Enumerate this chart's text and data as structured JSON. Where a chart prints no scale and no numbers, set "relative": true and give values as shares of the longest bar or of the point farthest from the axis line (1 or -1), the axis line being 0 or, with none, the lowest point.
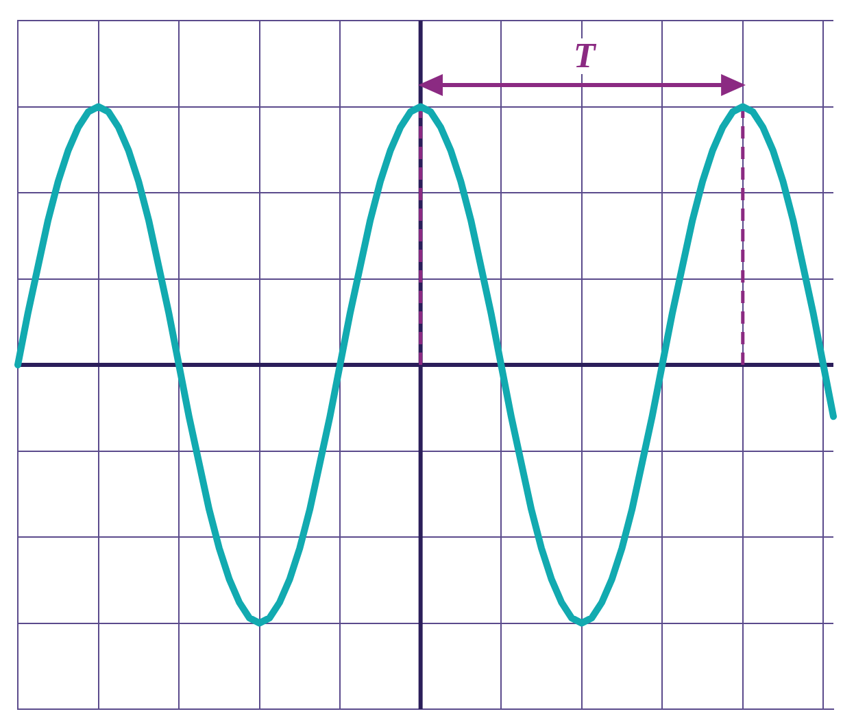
{
  "chart_data": {
    "type": "line",
    "relative": true,
    "grid": true,
    "tick_labels": false,
    "legend": false,
    "marker": "none",
    "line_style": "solid",
    "categories": [
      null,
      null,
      null,
      null,
      null,
      null,
      null,
      null,
      null,
      null,
      null,
      null,
      null,
      null,
      null,
      null,
      null,
      null,
      null,
      null,
      null,
      null,
      null,
      null,
      null,
      null,
      null,
      null,
      null,
      null,
      null,
      null,
      null,
      null,
      null,
      null,
      null,
      null,
      null,
      null,
      null,
      null,
      null,
      null,
      null,
      null,
      null,
      null,
      null,
      null,
      null,
      null,
      null,
      null,
      null,
      null,
      null,
      null,
      null,
      null,
      null,
      null,
      null,
      null,
      null,
      null,
      null,
      null,
      null,
      null,
      null,
      null,
      null,
      null,
      null,
      null,
      null,
      null,
      null,
      null,
      null,
      null
    ],
    "series": [
      {
        "color": "#12aab0",
        "values": [
          0,
          0.2,
          0.38,
          0.56,
          0.71,
          0.83,
          0.92,
          0.98,
          1,
          0.98,
          0.92,
          0.83,
          0.71,
          0.56,
          0.38,
          0.2,
          0,
          -0.2,
          -0.38,
          -0.56,
          -0.71,
          -0.83,
          -0.92,
          -0.98,
          -1,
          -0.98,
          -0.92,
          -0.83,
          -0.71,
          -0.56,
          -0.38,
          -0.2,
          0,
          0.2,
          0.38,
          0.56,
          0.71,
          0.83,
          0.92,
          0.98,
          1,
          0.98,
          0.92,
          0.83,
          0.71,
          0.56,
          0.38,
          0.2,
          0,
          -0.2,
          -0.38,
          -0.56,
          -0.71,
          -0.83,
          -0.92,
          -0.98,
          -1,
          -0.98,
          -0.92,
          -0.83,
          -0.71,
          -0.56,
          -0.38,
          -0.2,
          0,
          0.2,
          0.38,
          0.56,
          0.71,
          0.83,
          0.92,
          0.98,
          1,
          0.98,
          0.92,
          0.83,
          0.71,
          0.56,
          0.38,
          0.2,
          0,
          -0.2
        ]
      }
    ],
    "annotations": [
      "T"
    ]
  }
}
